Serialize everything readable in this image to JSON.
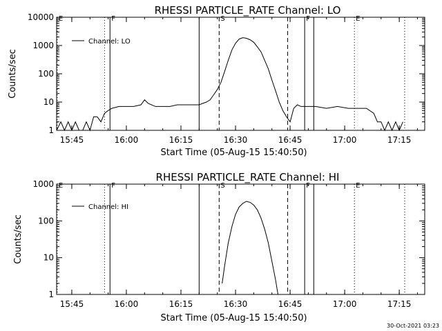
{
  "timestamp": "30-Oct-2021 03:23",
  "chart_data": [
    {
      "type": "line",
      "title": "RHESSI PARTICLE_RATE Channel: LO",
      "xlabel": "Start Time (05-Aug-15 15:40:50)",
      "ylabel": "Counts/sec",
      "yscale": "log",
      "xlim": [
        "15:40:50",
        "17:22:00"
      ],
      "ylim": [
        1,
        10000
      ],
      "x_ticks": [
        "15:45",
        "16:00",
        "16:15",
        "16:30",
        "16:45",
        "17:00",
        "17:15"
      ],
      "y_ticks": [
        "1",
        "10",
        "100",
        "1000",
        "10000"
      ],
      "legend": {
        "position": "top-left",
        "label": "Channel: LO"
      },
      "markers": [
        {
          "time": "15:41:00",
          "style": "dotted",
          "label": "E"
        },
        {
          "time": "15:54:00",
          "style": "dotted",
          "label": ""
        },
        {
          "time": "15:55:30",
          "style": "solid",
          "label": "F"
        },
        {
          "time": "16:20:00",
          "style": "solid",
          "label": ""
        },
        {
          "time": "16:25:30",
          "style": "dashed",
          "label": "S"
        },
        {
          "time": "16:44:20",
          "style": "dashed",
          "label": ""
        },
        {
          "time": "16:49:00",
          "style": "solid",
          "label": "F"
        },
        {
          "time": "16:51:30",
          "style": "solid",
          "label": ""
        },
        {
          "time": "17:02:40",
          "style": "dotted",
          "label": "E"
        },
        {
          "time": "17:16:30",
          "style": "dotted",
          "label": ""
        }
      ],
      "series": [
        {
          "name": "Channel: LO",
          "x": [
            "15:40:50",
            "15:42:00",
            "15:43:00",
            "15:44:00",
            "15:45:00",
            "15:46:00",
            "15:47:00",
            "15:48:00",
            "15:49:00",
            "15:50:00",
            "15:51:00",
            "15:52:00",
            "15:53:00",
            "15:54:00",
            "15:55:00",
            "15:56:00",
            "15:58:00",
            "16:00:00",
            "16:02:00",
            "16:04:00",
            "16:05:00",
            "16:06:00",
            "16:08:00",
            "16:10:00",
            "16:12:00",
            "16:14:00",
            "16:16:00",
            "16:18:00",
            "16:20:00",
            "16:21:00",
            "16:22:00",
            "16:23:00",
            "16:24:00",
            "16:25:00",
            "16:26:00",
            "16:27:00",
            "16:28:00",
            "16:29:00",
            "16:30:00",
            "16:31:00",
            "16:32:00",
            "16:33:00",
            "16:34:00",
            "16:35:00",
            "16:36:00",
            "16:37:00",
            "16:38:00",
            "16:39:00",
            "16:40:00",
            "16:41:00",
            "16:42:00",
            "16:43:00",
            "16:44:00",
            "16:45:00",
            "16:46:00",
            "16:47:00",
            "16:48:00",
            "16:50:00",
            "16:52:00",
            "16:55:00",
            "16:58:00",
            "17:01:00",
            "17:04:00",
            "17:06:00",
            "17:08:00",
            "17:09:00",
            "17:10:00",
            "17:11:00",
            "17:12:00",
            "17:13:00",
            "17:14:00",
            "17:15:00",
            "17:16:00"
          ],
          "values": [
            1,
            2,
            1,
            2,
            1,
            2,
            1,
            1,
            2,
            1,
            3,
            3,
            2,
            4,
            5,
            6,
            7,
            7,
            7,
            8,
            12,
            9,
            7,
            7,
            7,
            8,
            8,
            8,
            8,
            9,
            10,
            12,
            18,
            28,
            50,
            120,
            300,
            700,
            1200,
            1700,
            1900,
            1800,
            1600,
            1300,
            900,
            600,
            300,
            150,
            60,
            25,
            10,
            5,
            3,
            2,
            6,
            8,
            7,
            7,
            7,
            6,
            7,
            6,
            6,
            6,
            4,
            2,
            2,
            1,
            2,
            1,
            2,
            1,
            2
          ]
        }
      ]
    },
    {
      "type": "line",
      "title": "RHESSI PARTICLE_RATE Channel: HI",
      "xlabel": "Start Time (05-Aug-15 15:40:50)",
      "ylabel": "Counts/sec",
      "yscale": "log",
      "xlim": [
        "15:40:50",
        "17:22:00"
      ],
      "ylim": [
        1,
        1000
      ],
      "x_ticks": [
        "15:45",
        "16:00",
        "16:15",
        "16:30",
        "16:45",
        "17:00",
        "17:15"
      ],
      "y_ticks": [
        "1",
        "10",
        "100",
        "1000"
      ],
      "legend": {
        "position": "top-left",
        "label": "Channel: HI"
      },
      "markers": [
        {
          "time": "15:41:00",
          "style": "dotted",
          "label": "E"
        },
        {
          "time": "15:54:00",
          "style": "dotted",
          "label": ""
        },
        {
          "time": "15:55:30",
          "style": "solid",
          "label": "F"
        },
        {
          "time": "16:20:00",
          "style": "solid",
          "label": ""
        },
        {
          "time": "16:25:30",
          "style": "dashed",
          "label": "S"
        },
        {
          "time": "16:44:20",
          "style": "dashed",
          "label": ""
        },
        {
          "time": "16:49:00",
          "style": "solid",
          "label": "F"
        },
        {
          "time": "16:51:30",
          "style": "solid",
          "label": ""
        },
        {
          "time": "17:02:40",
          "style": "dotted",
          "label": "E"
        },
        {
          "time": "17:16:30",
          "style": "dotted",
          "label": ""
        }
      ],
      "series": [
        {
          "name": "Channel: HI",
          "x": [
            "16:26:20",
            "16:27:00",
            "16:28:00",
            "16:29:00",
            "16:30:00",
            "16:31:00",
            "16:32:00",
            "16:33:00",
            "16:34:00",
            "16:35:00",
            "16:36:00",
            "16:37:00",
            "16:38:00",
            "16:39:00",
            "16:40:00",
            "16:41:00",
            "16:41:40"
          ],
          "values": [
            2,
            6,
            25,
            70,
            150,
            240,
            300,
            340,
            320,
            270,
            200,
            120,
            60,
            25,
            8,
            2.5,
            1
          ]
        }
      ]
    }
  ]
}
